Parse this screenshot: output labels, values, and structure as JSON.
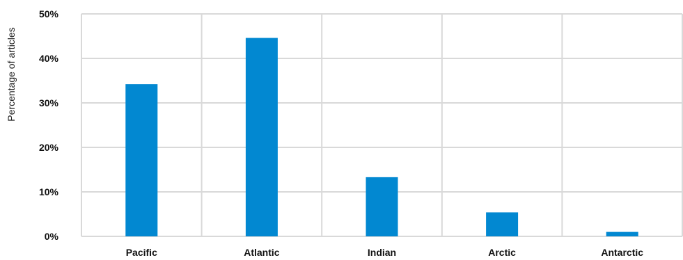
{
  "chart_data": {
    "type": "bar",
    "title": "",
    "xlabel": "",
    "ylabel": "Percentage of articles",
    "categories": [
      "Pacific",
      "Atlantic",
      "Indian",
      "Arctic",
      "Antarctic"
    ],
    "values": [
      34.2,
      44.6,
      13.3,
      5.4,
      1.0
    ],
    "ylim": [
      0,
      50
    ],
    "yticks": [
      "0%",
      "10%",
      "20%",
      "30%",
      "40%",
      "50%"
    ],
    "grid": true,
    "legend": "none",
    "colors": {
      "bar": "#0288D1",
      "grid": "#D9D9D9"
    }
  }
}
